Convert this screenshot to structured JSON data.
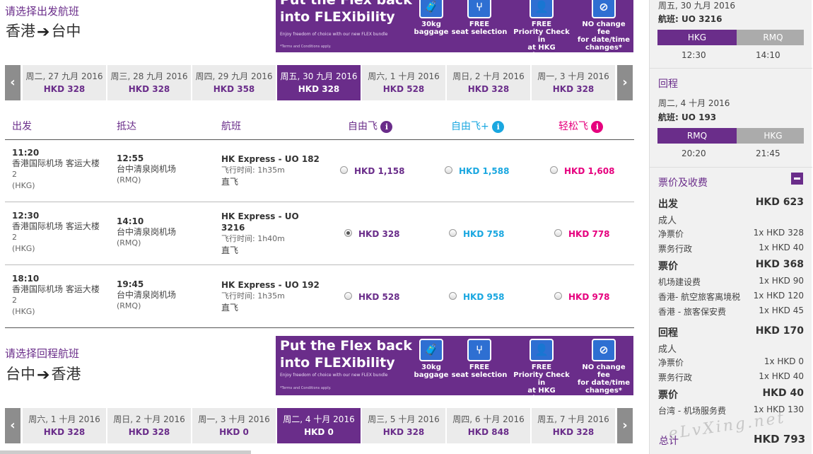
{
  "outbound": {
    "prompt": "请选择出发航班",
    "from": "香港",
    "to": "台中",
    "dates": [
      {
        "date": "周二, 27 九月 2016",
        "price": "HKD 328"
      },
      {
        "date": "周三, 28 九月 2016",
        "price": "HKD 328"
      },
      {
        "date": "周四, 29 九月 2016",
        "price": "HKD 358"
      },
      {
        "date": "周五, 30 九月 2016",
        "price": "HKD 328",
        "selected": true
      },
      {
        "date": "周六, 1 十月 2016",
        "price": "HKD 528"
      },
      {
        "date": "周日, 2 十月 2016",
        "price": "HKD 328"
      },
      {
        "date": "周一, 3 十月 2016",
        "price": "HKD 328"
      }
    ]
  },
  "banner": {
    "headline_1": "Put the Flex back",
    "headline_2": "into FLEXibility",
    "sub": "Enjoy freedom of choice with our new FLEX bundle",
    "terms": "*Terms and Conditions apply.",
    "features": [
      {
        "icon": "baggage-icon",
        "line1": "30kg",
        "line2": "baggage",
        "line3": ""
      },
      {
        "icon": "seat-icon",
        "line1": "FREE",
        "line2": "seat selection",
        "line3": ""
      },
      {
        "icon": "check-in-icon",
        "line1": "FREE",
        "line2": "Priority Check in",
        "line3": "at HKG airport"
      },
      {
        "icon": "no-fee-icon",
        "line1": "NO change fee",
        "line2": "for date/time",
        "line3": "changes*"
      }
    ]
  },
  "table": {
    "headers": {
      "depart": "出发",
      "arrive": "抵达",
      "flight": "航班",
      "fare1": "自由飞",
      "fare2": "自由飞+",
      "fare3": "轻松飞"
    },
    "rows": [
      {
        "dep_time": "11:20",
        "dep_airport_1": "香港国际机场 客运大楼",
        "dep_airport_2": "2",
        "dep_code": "(HKG)",
        "arr_time": "12:55",
        "arr_airport": "台中清泉岗机场",
        "arr_code": "(RMQ)",
        "flight_1": "HK Express - UO 182",
        "flight_2": "",
        "duration": "飞行时间: 1h35m",
        "type": "直飞",
        "fare1": "HKD 1,158",
        "fare2": "HKD 1,588",
        "fare3": "HKD 1,608",
        "selected": false
      },
      {
        "dep_time": "12:30",
        "dep_airport_1": "香港国际机场 客运大楼",
        "dep_airport_2": "2",
        "dep_code": "(HKG)",
        "arr_time": "14:10",
        "arr_airport": "台中清泉岗机场",
        "arr_code": "(RMQ)",
        "flight_1": "HK Express - UO",
        "flight_2": "3216",
        "duration": "飞行时间: 1h40m",
        "type": "直飞",
        "fare1": "HKD 328",
        "fare2": "HKD 758",
        "fare3": "HKD 778",
        "selected": true
      },
      {
        "dep_time": "18:10",
        "dep_airport_1": "香港国际机场 客运大楼",
        "dep_airport_2": "2",
        "dep_code": "(HKG)",
        "arr_time": "19:45",
        "arr_airport": "台中清泉岗机场",
        "arr_code": "(RMQ)",
        "flight_1": "HK Express - UO 192",
        "flight_2": "",
        "duration": "飞行时间: 1h35m",
        "type": "直飞",
        "fare1": "HKD 528",
        "fare2": "HKD 958",
        "fare3": "HKD 978",
        "selected": false
      }
    ]
  },
  "inbound": {
    "prompt": "请选择回程航班",
    "from": "台中",
    "to": "香港",
    "dates": [
      {
        "date": "周六, 1 十月 2016",
        "price": "HKD 328"
      },
      {
        "date": "周日, 2 十月 2016",
        "price": "HKD 328"
      },
      {
        "date": "周一, 3 十月 2016",
        "price": "HKD 0"
      },
      {
        "date": "周二, 4 十月 2016",
        "price": "HKD 0",
        "selected": true
      },
      {
        "date": "周三, 5 十月 2016",
        "price": "HKD 328"
      },
      {
        "date": "周四, 6 十月 2016",
        "price": "HKD 848"
      },
      {
        "date": "周五, 7 十月 2016",
        "price": "HKD 328"
      }
    ]
  },
  "summary": {
    "outbound": {
      "date": "周五, 30 九月 2016",
      "flight_label": "航班: UO 3216",
      "from": "HKG",
      "to": "RMQ",
      "dep_time": "12:30",
      "arr_time": "14:10"
    },
    "return": {
      "heading": "回程",
      "date": "周二, 4 十月 2016",
      "flight_label": "航班: UO 193",
      "from": "RMQ",
      "to": "HKG",
      "dep_time": "20:20",
      "arr_time": "21:45"
    },
    "fees": {
      "heading": "票价及收费",
      "depart_label": "出发",
      "depart_total": "HKD 623",
      "adult_1": "成人",
      "net_fare_label": "净票价",
      "net_fare_1": "1x HKD 328",
      "admin_label": "票务行政",
      "admin_1": "1x HKD 40",
      "taxes_label": "票价",
      "taxes_total": "HKD 368",
      "airport_fee_label": "机场建设费",
      "airport_fee": "1x HKD 90",
      "departure_tax_label": "香港- 航空旅客离境税",
      "departure_tax": "1x HKD 120",
      "security_label": "香港 - 旅客保安费",
      "security_fee": "1x HKD 45",
      "return_label": "回程",
      "return_total": "HKD 170",
      "adult_2": "成人",
      "net_fare_2_label": "净票价",
      "net_fare_2": "1x HKD 0",
      "admin_2_label": "票务行政",
      "admin_2": "1x HKD 40",
      "taxes_2_label": "票价",
      "taxes_2_total": "HKD 40",
      "tw_fee_label": "台湾 - 机场服务费",
      "tw_fee": "1x HKD 130",
      "total_label": "总计",
      "total": "HKD 793"
    },
    "watermark": "eLvXing.net"
  }
}
